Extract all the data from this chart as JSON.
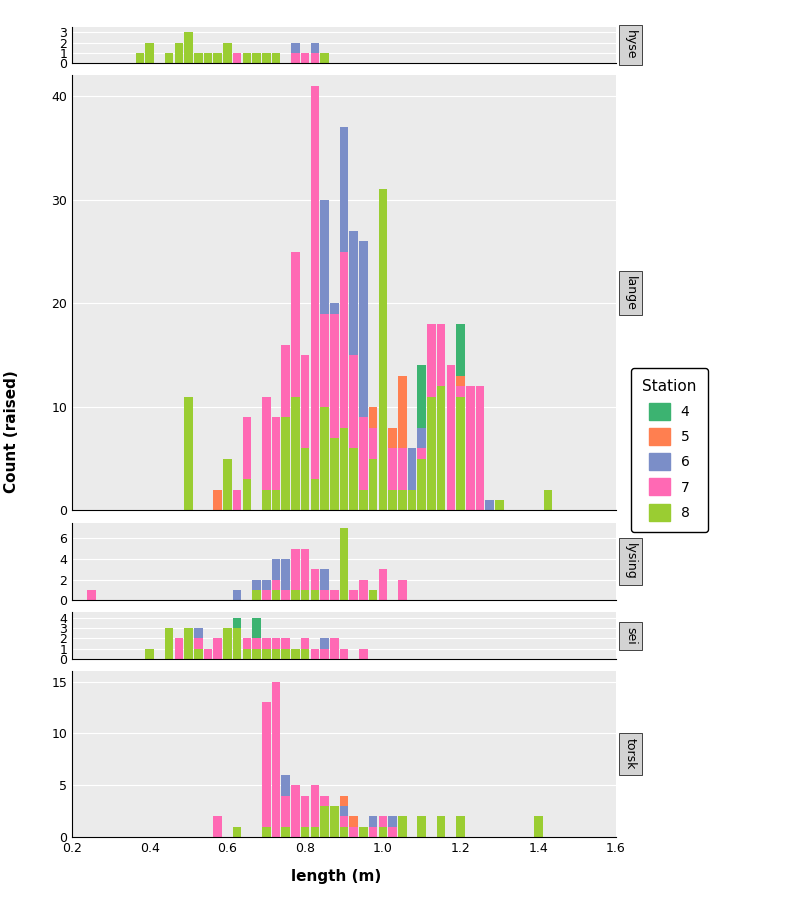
{
  "species": [
    "hyse",
    "lange",
    "lysing",
    "sei",
    "torsk"
  ],
  "stations": [
    "4",
    "5",
    "6",
    "7",
    "8"
  ],
  "colors": {
    "4": "#3CB371",
    "5": "#FF7F50",
    "6": "#7B8EC8",
    "7": "#FF69B4",
    "8": "#9ACD32"
  },
  "xlim": [
    0.2,
    1.6
  ],
  "bar_width": 0.022,
  "ylabel": "Count (raised)",
  "xlabel": "length (m)",
  "legend_title": "Station",
  "panel_label_bg": "#D3D3D3",
  "plot_bg": "#EBEBEB",
  "grid_color": "#FFFFFF",
  "xticks": [
    0.2,
    0.4,
    0.6,
    0.8,
    1.0,
    1.2,
    1.4,
    1.6
  ],
  "xtick_labels": [
    "0.2",
    "0.4",
    "0.6",
    "0.8",
    "1.0",
    "1.2",
    "1.4",
    "1.6"
  ],
  "ylims": {
    "hyse": [
      0,
      3.5
    ],
    "lange": [
      0,
      42
    ],
    "lysing": [
      0,
      7.5
    ],
    "sei": [
      0,
      4.5
    ],
    "torsk": [
      0,
      16
    ]
  },
  "yticks": {
    "hyse": [
      0,
      1,
      2,
      3
    ],
    "lange": [
      0,
      10,
      20,
      30,
      40
    ],
    "lysing": [
      0,
      2,
      4,
      6
    ],
    "sei": [
      0,
      1,
      2,
      3,
      4
    ],
    "torsk": [
      0,
      5,
      10,
      15
    ]
  },
  "height_ratios": [
    3.5,
    42,
    7.5,
    4.5,
    16
  ],
  "data": {
    "hyse": {
      "4": {},
      "5": {},
      "6": {
        "0.775": 2,
        "0.825": 2
      },
      "7": {
        "0.625": 1,
        "0.725": 1,
        "0.775": 1,
        "0.800": 1,
        "0.825": 1
      },
      "8": {
        "0.375": 1,
        "0.400": 2,
        "0.450": 1,
        "0.475": 2,
        "0.500": 3,
        "0.525": 1,
        "0.550": 1,
        "0.575": 1,
        "0.600": 2,
        "0.650": 1,
        "0.675": 1,
        "0.700": 1,
        "0.725": 1,
        "0.850": 1
      }
    },
    "lange": {
      "4": {
        "0.825": 3,
        "0.850": 9,
        "0.875": 10,
        "0.900": 9,
        "0.925": 10,
        "0.950": 9,
        "0.975": 6,
        "1.000": 7,
        "1.025": 6,
        "1.050": 5,
        "1.075": 5,
        "1.100": 14,
        "1.125": 9,
        "1.150": 18,
        "1.175": 13,
        "1.200": 18
      },
      "5": {
        "0.575": 2,
        "0.625": 1,
        "0.650": 3,
        "0.700": 1,
        "0.725": 5,
        "0.750": 11,
        "0.775": 16,
        "0.800": 13,
        "0.825": 19,
        "0.850": 23,
        "0.875": 19,
        "0.900": 25,
        "0.925": 19,
        "0.950": 13,
        "0.975": 10,
        "1.000": 13,
        "1.025": 8,
        "1.050": 13,
        "1.075": 5,
        "1.100": 2,
        "1.150": 1,
        "1.200": 13
      },
      "6": {
        "0.725": 2,
        "0.750": 3,
        "0.775": 19,
        "0.800": 9,
        "0.825": 18,
        "0.850": 30,
        "0.875": 20,
        "0.900": 37,
        "0.925": 27,
        "0.950": 26,
        "0.975": 7,
        "1.000": 17,
        "1.025": 6,
        "1.050": 6,
        "1.075": 6,
        "1.100": 8,
        "1.125": 13,
        "1.150": 14,
        "1.175": 9,
        "1.200": 9,
        "1.225": 7,
        "1.250": 2,
        "1.275": 1,
        "1.300": 1
      },
      "7": {
        "0.600": 1,
        "0.625": 2,
        "0.650": 9,
        "0.700": 11,
        "0.725": 9,
        "0.750": 16,
        "0.775": 25,
        "0.800": 15,
        "0.825": 41,
        "0.850": 19,
        "0.875": 19,
        "0.900": 25,
        "0.925": 15,
        "0.950": 9,
        "0.975": 8,
        "1.000": 27,
        "1.025": 6,
        "1.050": 6,
        "1.100": 6,
        "1.125": 18,
        "1.150": 18,
        "1.175": 14,
        "1.200": 12,
        "1.225": 12,
        "1.250": 12
      },
      "8": {
        "0.500": 11,
        "0.600": 5,
        "0.650": 3,
        "0.700": 2,
        "0.725": 2,
        "0.750": 9,
        "0.775": 11,
        "0.800": 6,
        "0.825": 3,
        "0.850": 10,
        "0.875": 7,
        "0.900": 8,
        "0.925": 6,
        "0.950": 2,
        "0.975": 5,
        "1.000": 31,
        "1.025": 2,
        "1.050": 2,
        "1.075": 2,
        "1.100": 5,
        "1.125": 11,
        "1.150": 12,
        "1.200": 11,
        "1.300": 1,
        "1.425": 2
      }
    },
    "lysing": {
      "4": {},
      "5": {},
      "6": {
        "0.625": 1,
        "0.675": 2,
        "0.700": 2,
        "0.725": 4,
        "0.750": 4,
        "0.775": 1,
        "0.800": 3,
        "0.825": 3,
        "0.850": 3,
        "0.875": 1,
        "0.900": 1
      },
      "7": {
        "0.250": 1,
        "0.675": 1,
        "0.700": 1,
        "0.725": 2,
        "0.750": 1,
        "0.775": 5,
        "0.800": 5,
        "0.825": 3,
        "0.850": 1,
        "0.875": 1,
        "0.900": 5,
        "0.925": 1,
        "0.950": 2,
        "0.975": 1,
        "1.000": 3,
        "1.050": 2
      },
      "8": {
        "0.675": 1,
        "0.725": 1,
        "0.775": 1,
        "0.800": 1,
        "0.825": 1,
        "0.900": 7,
        "0.975": 1
      }
    },
    "sei": {
      "4": {
        "0.625": 4,
        "0.675": 4
      },
      "5": {
        "0.625": 1,
        "0.700": 1,
        "0.750": 1,
        "0.800": 2,
        "0.825": 1,
        "0.850": 2,
        "0.875": 1,
        "0.900": 1,
        "0.950": 1
      },
      "6": {
        "0.450": 1,
        "0.500": 2,
        "0.525": 3,
        "0.575": 2,
        "0.600": 2,
        "0.625": 3,
        "0.650": 1,
        "0.675": 2,
        "0.700": 1,
        "0.725": 2,
        "0.750": 2,
        "0.800": 2,
        "0.850": 2,
        "0.875": 1,
        "0.900": 1
      },
      "7": {
        "0.450": 1,
        "0.475": 2,
        "0.500": 2,
        "0.525": 2,
        "0.550": 1,
        "0.575": 2,
        "0.600": 2,
        "0.625": 2,
        "0.650": 2,
        "0.675": 2,
        "0.700": 2,
        "0.725": 2,
        "0.750": 2,
        "0.775": 1,
        "0.800": 2,
        "0.825": 1,
        "0.850": 1,
        "0.875": 2,
        "0.900": 1,
        "0.950": 1
      },
      "8": {
        "0.400": 1,
        "0.450": 3,
        "0.500": 3,
        "0.525": 1,
        "0.600": 3,
        "0.625": 3,
        "0.650": 1,
        "0.675": 1,
        "0.700": 1,
        "0.725": 1,
        "0.750": 1,
        "0.775": 1,
        "0.800": 1
      }
    },
    "torsk": {
      "4": {},
      "5": {
        "0.750": 1,
        "0.775": 1,
        "0.825": 1,
        "0.850": 1,
        "0.875": 1,
        "0.900": 4,
        "0.925": 2,
        "0.950": 1,
        "0.975": 1
      },
      "6": {
        "0.575": 1,
        "0.700": 2,
        "0.725": 6,
        "0.750": 6,
        "0.775": 5,
        "0.800": 4,
        "0.825": 5,
        "0.850": 4,
        "0.875": 2,
        "0.900": 3,
        "0.925": 1,
        "0.950": 1,
        "0.975": 2,
        "1.000": 1,
        "1.025": 2,
        "1.050": 2,
        "1.100": 2,
        "1.150": 1,
        "1.200": 2
      },
      "7": {
        "0.575": 2,
        "0.700": 13,
        "0.725": 15,
        "0.750": 4,
        "0.775": 5,
        "0.800": 4,
        "0.825": 5,
        "0.850": 4,
        "0.875": 3,
        "0.900": 2,
        "0.925": 1,
        "0.950": 1,
        "0.975": 1,
        "1.000": 2,
        "1.025": 1,
        "1.100": 1,
        "1.200": 1
      },
      "8": {
        "0.625": 1,
        "0.700": 1,
        "0.750": 1,
        "0.800": 1,
        "0.825": 1,
        "0.850": 3,
        "0.875": 3,
        "0.900": 1,
        "0.950": 1,
        "1.000": 1,
        "1.050": 2,
        "1.100": 2,
        "1.150": 2,
        "1.200": 2,
        "1.400": 2
      }
    }
  }
}
